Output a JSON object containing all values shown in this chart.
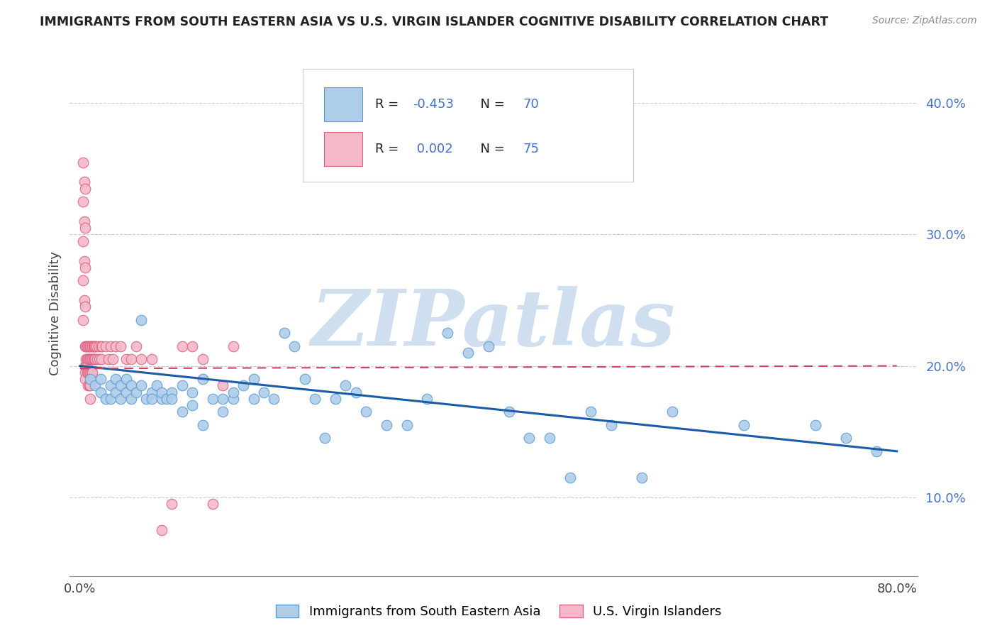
{
  "title": "IMMIGRANTS FROM SOUTH EASTERN ASIA VS U.S. VIRGIN ISLANDER COGNITIVE DISABILITY CORRELATION CHART",
  "source": "Source: ZipAtlas.com",
  "ylabel": "Cognitive Disability",
  "yticks": [
    0.1,
    0.2,
    0.3,
    0.4
  ],
  "ytick_labels": [
    "10.0%",
    "20.0%",
    "30.0%",
    "40.0%"
  ],
  "xticks": [
    0.0,
    0.1,
    0.2,
    0.3,
    0.4,
    0.5,
    0.6,
    0.7,
    0.8
  ],
  "xtick_labels": [
    "0.0%",
    "",
    "",
    "",
    "",
    "",
    "",
    "",
    "80.0%"
  ],
  "xlim": [
    -0.01,
    0.82
  ],
  "ylim": [
    0.04,
    0.44
  ],
  "blue_R": -0.453,
  "blue_N": 70,
  "pink_R": 0.002,
  "pink_N": 75,
  "blue_color": "#aecde8",
  "pink_color": "#f4b8c8",
  "blue_edge_color": "#5b9bd5",
  "pink_edge_color": "#e06080",
  "blue_line_color": "#1a5ca8",
  "pink_line_color": "#d04060",
  "watermark": "ZIPatlas",
  "watermark_color": "#d0dff0",
  "legend_blue_label": "Immigrants from South Eastern Asia",
  "legend_pink_label": "U.S. Virgin Islanders",
  "blue_scatter_x": [
    0.01,
    0.015,
    0.02,
    0.02,
    0.025,
    0.03,
    0.03,
    0.035,
    0.035,
    0.04,
    0.04,
    0.045,
    0.045,
    0.05,
    0.05,
    0.055,
    0.06,
    0.06,
    0.065,
    0.07,
    0.07,
    0.075,
    0.08,
    0.08,
    0.085,
    0.09,
    0.09,
    0.1,
    0.1,
    0.11,
    0.11,
    0.12,
    0.12,
    0.13,
    0.14,
    0.14,
    0.15,
    0.15,
    0.16,
    0.17,
    0.17,
    0.18,
    0.19,
    0.2,
    0.21,
    0.22,
    0.23,
    0.24,
    0.25,
    0.26,
    0.27,
    0.28,
    0.3,
    0.32,
    0.34,
    0.36,
    0.38,
    0.4,
    0.42,
    0.44,
    0.46,
    0.48,
    0.5,
    0.52,
    0.55,
    0.58,
    0.65,
    0.72,
    0.75,
    0.78
  ],
  "blue_scatter_y": [
    0.19,
    0.185,
    0.19,
    0.18,
    0.175,
    0.185,
    0.175,
    0.18,
    0.19,
    0.185,
    0.175,
    0.18,
    0.19,
    0.185,
    0.175,
    0.18,
    0.235,
    0.185,
    0.175,
    0.18,
    0.175,
    0.185,
    0.175,
    0.18,
    0.175,
    0.18,
    0.175,
    0.185,
    0.165,
    0.18,
    0.17,
    0.155,
    0.19,
    0.175,
    0.165,
    0.175,
    0.175,
    0.18,
    0.185,
    0.19,
    0.175,
    0.18,
    0.175,
    0.225,
    0.215,
    0.19,
    0.175,
    0.145,
    0.175,
    0.185,
    0.18,
    0.165,
    0.155,
    0.155,
    0.175,
    0.225,
    0.21,
    0.215,
    0.165,
    0.145,
    0.145,
    0.115,
    0.165,
    0.155,
    0.115,
    0.165,
    0.155,
    0.155,
    0.145,
    0.135
  ],
  "pink_scatter_x": [
    0.003,
    0.003,
    0.003,
    0.003,
    0.003,
    0.004,
    0.004,
    0.004,
    0.004,
    0.005,
    0.005,
    0.005,
    0.005,
    0.005,
    0.005,
    0.005,
    0.005,
    0.006,
    0.006,
    0.006,
    0.007,
    0.007,
    0.007,
    0.007,
    0.008,
    0.008,
    0.008,
    0.008,
    0.009,
    0.009,
    0.009,
    0.009,
    0.01,
    0.01,
    0.01,
    0.01,
    0.01,
    0.011,
    0.011,
    0.011,
    0.012,
    0.012,
    0.012,
    0.013,
    0.013,
    0.014,
    0.014,
    0.015,
    0.015,
    0.016,
    0.017,
    0.018,
    0.019,
    0.02,
    0.021,
    0.022,
    0.025,
    0.028,
    0.03,
    0.032,
    0.035,
    0.04,
    0.045,
    0.05,
    0.055,
    0.06,
    0.07,
    0.08,
    0.09,
    0.1,
    0.11,
    0.12,
    0.13,
    0.14,
    0.15
  ],
  "pink_scatter_y": [
    0.355,
    0.325,
    0.295,
    0.265,
    0.235,
    0.34,
    0.31,
    0.28,
    0.25,
    0.335,
    0.305,
    0.275,
    0.245,
    0.215,
    0.2,
    0.195,
    0.19,
    0.215,
    0.205,
    0.2,
    0.215,
    0.205,
    0.2,
    0.195,
    0.215,
    0.205,
    0.195,
    0.185,
    0.215,
    0.205,
    0.195,
    0.185,
    0.215,
    0.205,
    0.195,
    0.185,
    0.175,
    0.215,
    0.205,
    0.195,
    0.215,
    0.205,
    0.195,
    0.215,
    0.205,
    0.215,
    0.205,
    0.215,
    0.205,
    0.215,
    0.205,
    0.215,
    0.205,
    0.215,
    0.205,
    0.215,
    0.215,
    0.205,
    0.215,
    0.205,
    0.215,
    0.215,
    0.205,
    0.205,
    0.215,
    0.205,
    0.205,
    0.075,
    0.095,
    0.215,
    0.215,
    0.205,
    0.095,
    0.185,
    0.215
  ],
  "blue_trend_x": [
    0.0,
    0.8
  ],
  "blue_trend_y": [
    0.2,
    0.135
  ],
  "pink_trend_x": [
    0.0,
    0.8
  ],
  "pink_trend_y": [
    0.198,
    0.2
  ]
}
